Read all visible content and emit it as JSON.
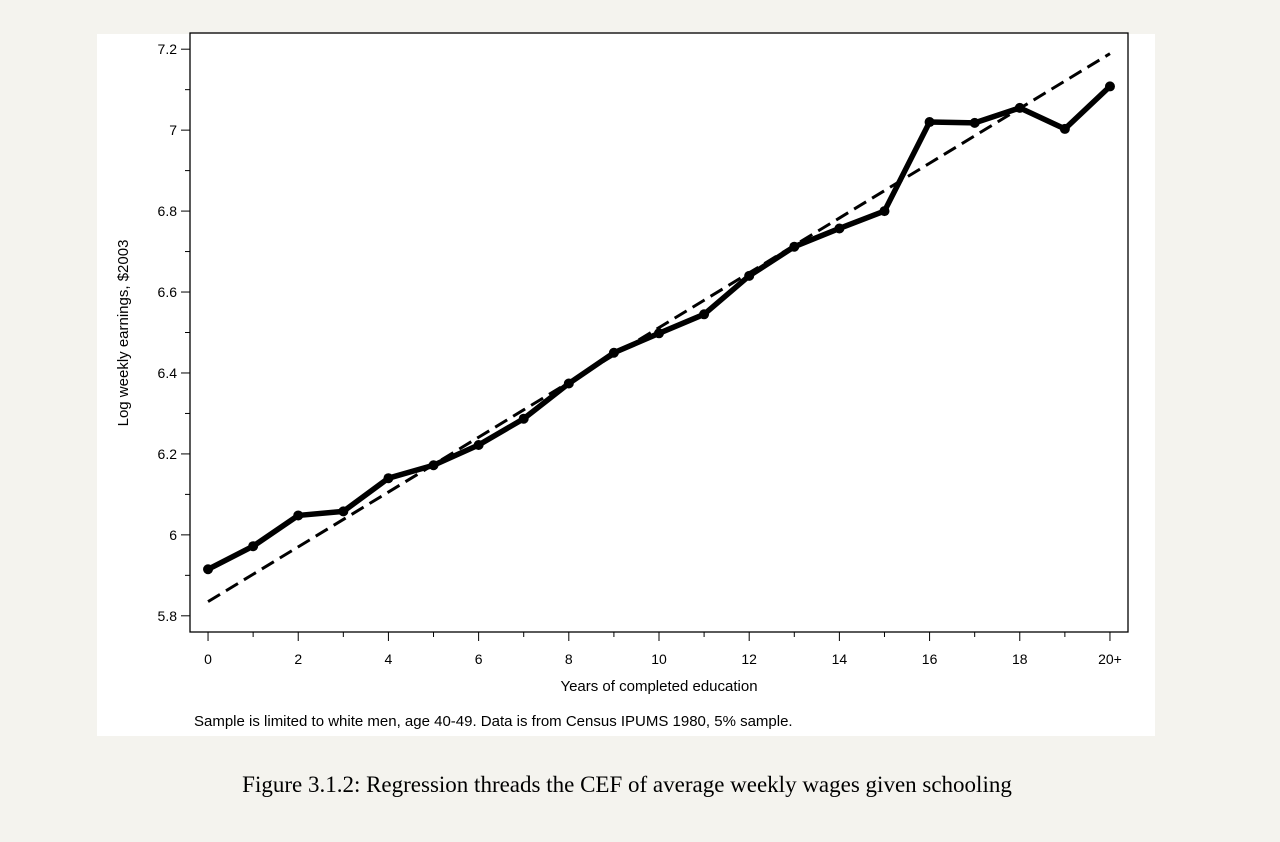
{
  "chart_data": {
    "type": "line",
    "xlabel": "Years of completed education",
    "ylabel": "Log weekly earnings, $2003",
    "x": [
      0,
      1,
      2,
      3,
      4,
      5,
      6,
      7,
      8,
      9,
      10,
      11,
      12,
      13,
      14,
      15,
      16,
      17,
      18,
      19,
      20
    ],
    "x_tick_values": [
      0,
      2,
      4,
      6,
      8,
      10,
      12,
      14,
      16,
      18,
      20
    ],
    "x_tick_labels": [
      "0",
      "2",
      "4",
      "6",
      "8",
      "10",
      "12",
      "14",
      "16",
      "18",
      "20+"
    ],
    "y_tick_values": [
      5.8,
      6,
      6.2,
      6.4,
      6.6,
      6.8,
      7,
      7.2
    ],
    "y_tick_labels": [
      "5.8",
      "6",
      "6.2",
      "6.4",
      "6.6",
      "6.8",
      "7",
      "7.2"
    ],
    "xlim": [
      -0.4,
      20.4
    ],
    "ylim": [
      5.76,
      7.24
    ],
    "series": [
      {
        "style": "solid-markers",
        "values": [
          5.915,
          5.972,
          6.048,
          6.058,
          6.14,
          6.172,
          6.222,
          6.287,
          6.374,
          6.45,
          6.498,
          6.545,
          6.64,
          6.712,
          6.757,
          6.8,
          7.02,
          7.018,
          7.055,
          7.003,
          7.108
        ]
      },
      {
        "style": "dashed",
        "values": [
          5.835,
          5.9027,
          5.9704,
          6.0381,
          6.1058,
          6.1735,
          6.2412,
          6.3089,
          6.3766,
          6.4443,
          6.512,
          6.5797,
          6.6474,
          6.7151,
          6.7828,
          6.8505,
          6.9182,
          6.9859,
          7.0536,
          7.1213,
          7.189
        ]
      }
    ],
    "grid": false,
    "legend": "none"
  },
  "note": "Sample is limited to white men, age 40-49.  Data is from Census IPUMS 1980, 5% sample.",
  "caption": "Figure 3.1.2: Regression threads the CEF of average weekly wages given schooling"
}
